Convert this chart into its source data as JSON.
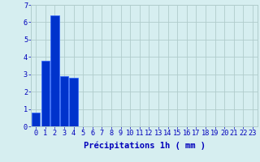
{
  "values": [
    0.8,
    3.8,
    6.4,
    2.9,
    2.8,
    0,
    0,
    0,
    0,
    0,
    0,
    0,
    0,
    0,
    0,
    0,
    0,
    0,
    0,
    0,
    0,
    0,
    0,
    0
  ],
  "bar_color": "#0033cc",
  "bar_edge_color": "#3366ff",
  "background_color": "#d6eef0",
  "grid_color": "#b0cccc",
  "text_color": "#0000bb",
  "xlabel": "Précipitations 1h ( mm )",
  "ylim": [
    0,
    7
  ],
  "yticks": [
    0,
    1,
    2,
    3,
    4,
    5,
    6,
    7
  ],
  "xtick_labels": [
    "0",
    "1",
    "2",
    "3",
    "4",
    "5",
    "6",
    "7",
    "8",
    "9",
    "10",
    "11",
    "12",
    "13",
    "14",
    "15",
    "16",
    "17",
    "18",
    "19",
    "20",
    "21",
    "22",
    "23"
  ],
  "xlabel_fontsize": 7.5,
  "tick_fontsize": 6.2
}
